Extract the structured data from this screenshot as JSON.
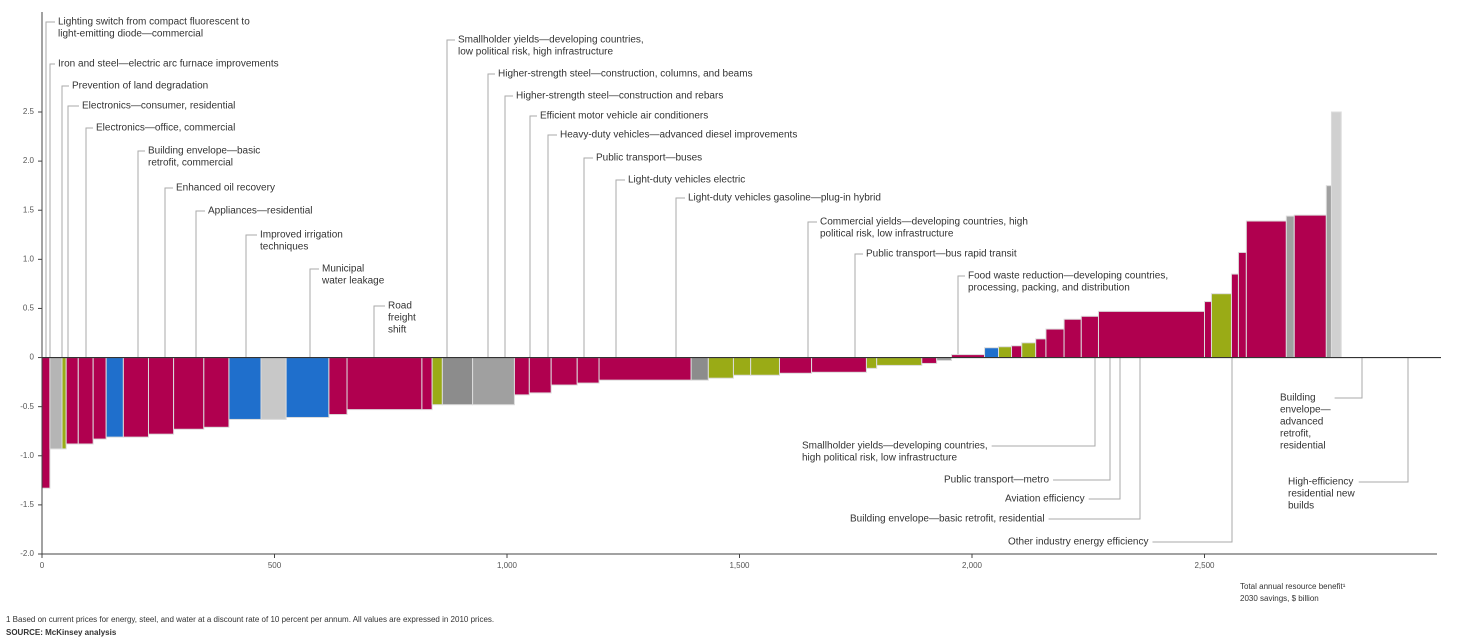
{
  "chart_data": {
    "type": "cost-curve",
    "x_title": [
      "Total annual resource benefit¹",
      "2030 savings, $ billion"
    ],
    "footnote": "1 Based on current prices for energy, steel, and water at a discount rate of 10 percent per annum. All values are expressed in 2010 prices.",
    "source": "SOURCE: McKinsey analysis",
    "xlim": [
      0,
      3000
    ],
    "xticks": [
      0,
      500,
      {
        "value": 1000,
        "label": "1,000"
      },
      {
        "value": 1500,
        "label": "1,500"
      },
      {
        "value": 2000,
        "label": "2,000"
      },
      {
        "value": 2500,
        "label": "2,500"
      }
    ],
    "ylim": [
      -2,
      2.5
    ],
    "yticks": [
      {
        "value": -2,
        "label": "-2.0"
      },
      -1.5,
      {
        "value": -1,
        "label": "-1.0"
      },
      -0.5,
      0,
      0.5,
      {
        "value": 1,
        "label": "1.0"
      },
      1.5,
      {
        "value": 2,
        "label": "2.0"
      },
      2.5
    ],
    "widths": [
      17,
      26,
      9,
      26,
      32,
      28,
      37,
      54,
      54,
      65,
      54,
      69,
      54,
      92,
      39,
      161,
      22,
      22,
      65,
      90,
      32,
      47,
      56,
      47,
      198,
      37,
      54,
      37,
      62,
      69,
      118,
      22,
      97,
      32,
      32,
      71,
      30,
      28,
      22,
      30,
      22,
      39,
      37,
      37,
      228,
      15,
      43,
      15,
      17,
      86,
      17,
      69,
      11,
      21
    ],
    "values": [
      -1.33,
      -0.93,
      -0.93,
      -0.88,
      -0.88,
      -0.83,
      -0.81,
      -0.81,
      -0.78,
      -0.73,
      -0.71,
      -0.63,
      -0.63,
      -0.61,
      -0.58,
      -0.53,
      -0.53,
      -0.48,
      -0.48,
      -0.48,
      -0.38,
      -0.36,
      -0.28,
      -0.26,
      -0.23,
      -0.23,
      -0.21,
      -0.18,
      -0.18,
      -0.16,
      -0.15,
      -0.11,
      -0.08,
      -0.06,
      -0.03,
      0.03,
      0.1,
      0.11,
      0.12,
      0.15,
      0.19,
      0.29,
      0.39,
      0.42,
      0.47,
      0.57,
      0.65,
      0.85,
      1.07,
      1.39,
      1.44,
      1.45,
      1.75,
      2.5
    ],
    "colors": [
      "#b0004f",
      "#b5b5b5",
      "#9aab16",
      "#b0004f",
      "#b0004f",
      "#b0004f",
      "#1f6fcc",
      "#b0004f",
      "#b0004f",
      "#b0004f",
      "#b0004f",
      "#1f6fcc",
      "#c8c8c8",
      "#1f6fcc",
      "#b0004f",
      "#b0004f",
      "#b0004f",
      "#9aab16",
      "#8c8c8c",
      "#a0a0a0",
      "#b0004f",
      "#b0004f",
      "#b0004f",
      "#b0004f",
      "#b0004f",
      "#8c8c8c",
      "#9aab16",
      "#9aab16",
      "#9aab16",
      "#b0004f",
      "#b0004f",
      "#9aab16",
      "#9aab16",
      "#b0004f",
      "#a0a0a0",
      "#b0004f",
      "#1f6fcc",
      "#9aab16",
      "#b0004f",
      "#9aab16",
      "#b0004f",
      "#b0004f",
      "#b0004f",
      "#b0004f",
      "#b0004f",
      "#b0004f",
      "#9aab16",
      "#b0004f",
      "#b0004f",
      "#b0004f",
      "#a0a0a0",
      "#b0004f",
      "#a0a0a0",
      "#d0d0d0"
    ],
    "annotations": [
      {
        "lines": [
          "Lighting switch from compact fluorescent to",
          "light-emitting diode—commercial"
        ],
        "color": "#b0004f"
      },
      {
        "lines": [
          "Iron and steel—electric arc furnace improvements"
        ],
        "color": "#333333"
      },
      {
        "lines": [
          "Prevention of land degradation"
        ],
        "color": "#7d8c10"
      },
      {
        "lines": [
          "Electronics—consumer, residential"
        ],
        "color": "#333333"
      },
      {
        "lines": [
          "Electronics—office, commercial"
        ],
        "color": "#333333"
      },
      {
        "lines": [
          "Building envelope—basic",
          "retrofit, commercial"
        ],
        "color": "#333333"
      },
      {
        "lines": [
          "Enhanced oil recovery"
        ],
        "color": "#333333"
      },
      {
        "lines": [
          "Appliances—residential"
        ],
        "color": "#333333"
      },
      {
        "lines": [
          "Improved irrigation",
          "techniques"
        ],
        "color": "#1f5fbf"
      },
      {
        "lines": [
          "Municipal",
          "water leakage"
        ],
        "color": "#1f5fbf"
      },
      {
        "lines": [
          "Road",
          "freight",
          "shift"
        ],
        "color": "#333333"
      },
      {
        "lines": [
          "Smallholder yields—developing countries,",
          "low political risk, high infrastructure"
        ],
        "color": "#7d8c10"
      },
      {
        "lines": [
          "Higher-strength steel—construction, columns, and beams"
        ],
        "color": "#333333"
      },
      {
        "lines": [
          "Higher-strength steel—construction and rebars"
        ],
        "color": "#333333"
      },
      {
        "lines": [
          "Efficient motor vehicle air conditioners"
        ],
        "color": "#333333"
      },
      {
        "lines": [
          "Heavy-duty vehicles—advanced diesel improvements"
        ],
        "color": "#333333"
      },
      {
        "lines": [
          "Public transport—buses"
        ],
        "color": "#333333"
      },
      {
        "lines": [
          "Light-duty vehicles electric"
        ],
        "color": "#333333"
      },
      {
        "lines": [
          "Light-duty vehicles gasoline—plug-in hybrid"
        ],
        "color": "#333333"
      },
      {
        "lines": [
          "Commercial yields—developing countries, high",
          "political risk, low infrastructure"
        ],
        "color": "#7d8c10"
      },
      {
        "lines": [
          "Public transport—bus rapid transit"
        ],
        "color": "#333333"
      },
      {
        "lines": [
          "Food waste reduction—developing countries,",
          "processing, packing, and distribution"
        ],
        "color": "#7d8c10"
      },
      {
        "lines": [
          "Smallholder yields—developing countries,",
          "high political risk, low infrastructure"
        ],
        "color": "#7d8c10"
      },
      {
        "lines": [
          "Public transport—metro"
        ],
        "color": "#333333"
      },
      {
        "lines": [
          "Aviation efficiency"
        ],
        "color": "#333333"
      },
      {
        "lines": [
          "Building envelope—basic retrofit, residential"
        ],
        "color": "#333333"
      },
      {
        "lines": [
          "Other industry energy efficiency"
        ],
        "color": "#333333"
      },
      {
        "lines": [
          "Building",
          "envelope—",
          "advanced",
          "retrofit,",
          "residential"
        ],
        "color": "#333333"
      },
      {
        "lines": [
          "High-efficiency",
          "residential new",
          "builds"
        ],
        "color": "#333333"
      }
    ]
  }
}
